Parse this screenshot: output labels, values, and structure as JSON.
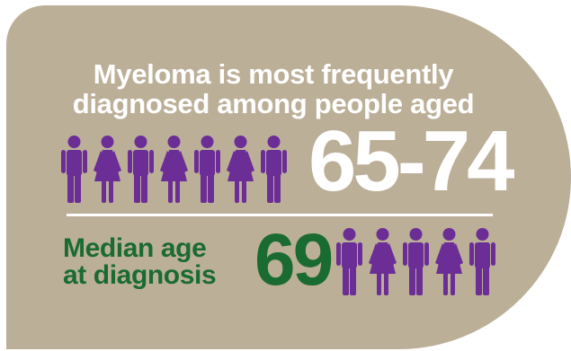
{
  "infographic": {
    "headline_line1": "Myeloma is most frequently",
    "headline_line2": "diagnosed among people aged",
    "age_range": "65-74",
    "median_label_line1": "Median age",
    "median_label_line2": "at diagnosis",
    "median_value": "69"
  },
  "icons": {
    "top_row": [
      "male-person-icon",
      "female-person-icon",
      "male-person-icon",
      "female-person-icon",
      "male-person-icon",
      "female-person-icon",
      "male-person-icon"
    ],
    "bottom_row": [
      "male-person-icon",
      "female-person-icon",
      "male-person-icon",
      "female-person-icon",
      "male-person-icon"
    ]
  },
  "colors": {
    "panel": "#bcaf98",
    "text_white": "#ffffff",
    "green": "#1a6b32",
    "purple": "#6b2d96"
  }
}
